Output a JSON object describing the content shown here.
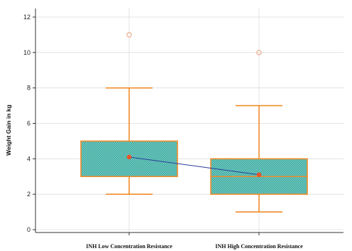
{
  "chart_data": {
    "type": "box",
    "title": "",
    "xlabel": "",
    "ylabel": "Weight Gain in kg",
    "ylim": [
      0,
      12
    ],
    "yticks": [
      0,
      2,
      4,
      6,
      8,
      10,
      12
    ],
    "grid": true,
    "categories": [
      "INH Low Concentration Resistance",
      "INH High Concentration Resistance"
    ],
    "boxes": [
      {
        "category": "INH Low Concentration Resistance",
        "whisker_low": 2,
        "q1": 3,
        "median": 3,
        "q3": 5,
        "whisker_high": 8,
        "mean": 4.1,
        "outliers": [
          11
        ]
      },
      {
        "category": "INH High Concentration Resistance",
        "whisker_low": 1,
        "q1": 2,
        "median": 3,
        "q3": 4,
        "whisker_high": 7,
        "mean": 3.1,
        "outliers": [
          10
        ]
      }
    ],
    "mean_line": true,
    "colors": {
      "box_fill": "#2aa59a",
      "box_edge": "#f08c2a",
      "whisker": "#f08c2a",
      "mean_marker": "#e8552a",
      "mean_line": "#2b3a9a",
      "outlier": "#e9a07a",
      "grid": "#dddddd",
      "axis": "#333333"
    }
  }
}
